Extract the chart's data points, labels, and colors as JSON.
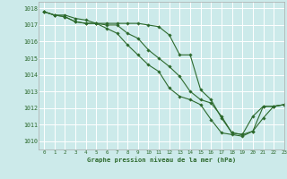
{
  "title": "Graphe pression niveau de la mer (hPa)",
  "bg_color": "#cceaea",
  "grid_color": "#ffffff",
  "line_color": "#2d6a2d",
  "marker_color": "#2d6a2d",
  "xlim": [
    -0.5,
    23
  ],
  "ylim": [
    1009.5,
    1018.4
  ],
  "yticks": [
    1010,
    1011,
    1012,
    1013,
    1014,
    1015,
    1016,
    1017,
    1018
  ],
  "xticks": [
    0,
    1,
    2,
    3,
    4,
    5,
    6,
    7,
    8,
    9,
    10,
    11,
    12,
    13,
    14,
    15,
    16,
    17,
    18,
    19,
    20,
    21,
    22,
    23
  ],
  "series": [
    [
      1017.8,
      1017.6,
      1017.6,
      1017.4,
      1017.3,
      1017.1,
      1017.1,
      1017.1,
      1017.1,
      1017.1,
      1017.0,
      1016.9,
      1016.4,
      1015.2,
      1015.2,
      1013.1,
      1012.5,
      1011.4,
      1010.5,
      1010.4,
      1010.6,
      1012.1,
      1012.1,
      1012.2
    ],
    [
      1017.8,
      1017.6,
      1017.5,
      1017.2,
      1017.1,
      1017.1,
      1017.0,
      1017.0,
      1016.5,
      1016.2,
      1015.5,
      1015.0,
      1014.5,
      1013.9,
      1013.0,
      1012.5,
      1012.3,
      1011.5,
      1010.5,
      1010.4,
      1011.5,
      1012.1,
      1012.1,
      1012.2
    ],
    [
      1017.8,
      1017.6,
      1017.5,
      1017.2,
      1017.1,
      1017.1,
      1016.8,
      1016.5,
      1015.8,
      1015.2,
      1014.6,
      1014.2,
      1013.2,
      1012.7,
      1012.5,
      1012.2,
      1011.3,
      1010.5,
      1010.4,
      1010.3,
      1010.6,
      1011.4,
      1012.1,
      1012.2
    ]
  ]
}
